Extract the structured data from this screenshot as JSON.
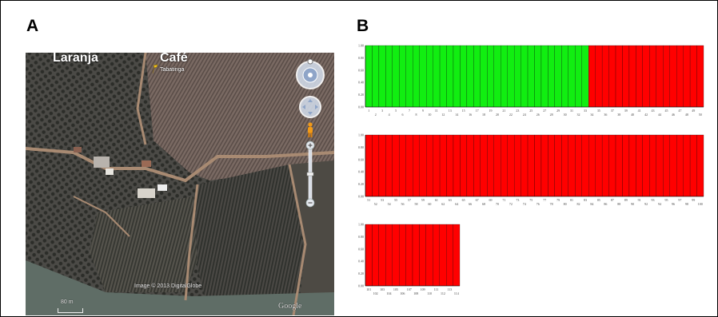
{
  "panels": {
    "a": {
      "letter": "A"
    },
    "b": {
      "letter": "B"
    }
  },
  "map": {
    "labels": {
      "laranja": "Laranja",
      "cafe": "Café",
      "place": "Tabatinga"
    },
    "credit": "Image © 2013 DigitalGlobe",
    "scale": "80 m",
    "logo": "Google",
    "controls": [
      "look-control",
      "move-control",
      "street-view-pegman",
      "zoom-in",
      "zoom-out"
    ]
  },
  "colors": {
    "cluster_1": "#11ee11",
    "cluster_2": "#ff0000",
    "divider": "#000000"
  },
  "chart_data": [
    {
      "type": "bar",
      "stacked": true,
      "title": "",
      "y_ticks": [
        "0.00",
        "0.20",
        "0.40",
        "0.60",
        "0.80",
        "1.00"
      ],
      "ylim": [
        0,
        1
      ],
      "x_start": 1,
      "x_end": 50,
      "series": [
        {
          "color": "#11ee11",
          "rule": "individuals 1–33 = 1.00, 34–50 = 0.00"
        },
        {
          "color": "#ff0000",
          "rule": "individuals 1–33 = 0.00, 34–50 = 1.00"
        }
      ],
      "green_count": 33
    },
    {
      "type": "bar",
      "stacked": true,
      "title": "",
      "y_ticks": [
        "0.00",
        "0.20",
        "0.40",
        "0.60",
        "0.80",
        "1.00"
      ],
      "ylim": [
        0,
        1
      ],
      "x_start": 51,
      "x_end": 100,
      "series": [
        {
          "color": "#ff0000",
          "rule": "individuals 51–100 = 1.00"
        }
      ],
      "green_count": 0
    },
    {
      "type": "bar",
      "stacked": true,
      "title": "",
      "y_ticks": [
        "0.00",
        "0.20",
        "0.40",
        "0.60",
        "0.80",
        "1.00"
      ],
      "ylim": [
        0,
        1
      ],
      "x_start": 101,
      "x_end": 114,
      "series": [
        {
          "color": "#ff0000",
          "rule": "individuals 101–114 = 1.00"
        }
      ],
      "green_count": 0
    }
  ]
}
